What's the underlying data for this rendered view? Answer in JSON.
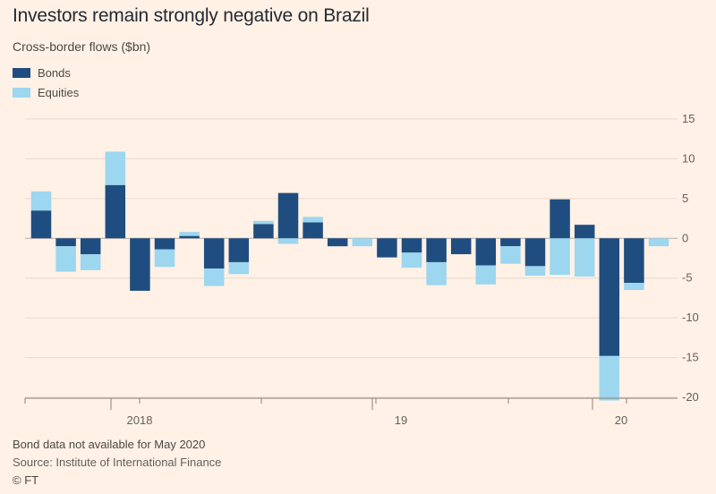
{
  "chart_data": {
    "type": "bar",
    "stacked": true,
    "title": "Investors remain strongly negative on Brazil",
    "subtitle": "Cross-border flows ($bn)",
    "ylim": [
      -20,
      15
    ],
    "yticks": [
      15,
      10,
      5,
      0,
      -5,
      -10,
      -15,
      -20
    ],
    "x_ticks": [
      "2018",
      "19",
      "20"
    ],
    "grid": true,
    "legend_position": "top-left",
    "series": [
      {
        "name": "Bonds",
        "color": "#1f4d80",
        "values": [
          3.5,
          -1.0,
          -2.0,
          6.7,
          -6.6,
          -1.4,
          0.3,
          -3.8,
          -3.0,
          1.8,
          5.7,
          2.0,
          -1.0,
          0.0,
          -2.4,
          -1.8,
          -3.0,
          -2.0,
          -3.4,
          -1.0,
          -3.5,
          4.9,
          1.7,
          -14.8,
          -5.6,
          0.0
        ]
      },
      {
        "name": "Equities",
        "color": "#9cd6ef",
        "values": [
          2.4,
          -3.2,
          -2.0,
          4.2,
          0.0,
          -2.2,
          0.5,
          -2.2,
          -1.5,
          0.4,
          -0.7,
          0.7,
          0.0,
          -1.0,
          0.0,
          -1.9,
          -2.9,
          0.0,
          -2.4,
          -2.2,
          -1.2,
          -4.6,
          -4.8,
          -5.6,
          -0.9,
          -1.0
        ]
      }
    ]
  },
  "footer": {
    "note": "Bond data not available for May 2020",
    "source": "Source: Institute of International Finance",
    "credit": "© FT"
  }
}
